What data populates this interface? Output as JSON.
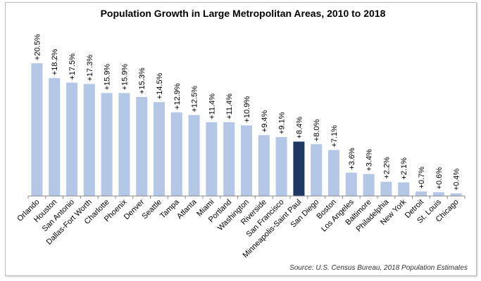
{
  "chart_data": {
    "type": "bar",
    "title": "Population Growth in Large Metropolitan Areas, 2010 to 2018",
    "source": "Source: U.S. Census Bureau, 2018 Population Estimates",
    "categories": [
      "Orlando",
      "Houston",
      "San Antonio",
      "Dallas-Fort Worth",
      "Charlotte",
      "Phoenix",
      "Denver",
      "Seattle",
      "Tampa",
      "Atlanta",
      "Miami",
      "Portland",
      "Washington",
      "Riverside",
      "San Francisco",
      "Minneapolis-Saint Paul",
      "San Diego",
      "Boston",
      "Los Angeles",
      "Baltimore",
      "Philadelphia",
      "New York",
      "Detroit",
      "St. Louis",
      "Chicago"
    ],
    "values": [
      20.5,
      18.2,
      17.5,
      17.3,
      15.9,
      15.9,
      15.3,
      14.5,
      12.9,
      12.5,
      11.4,
      11.4,
      10.9,
      9.4,
      9.1,
      8.4,
      8.0,
      7.1,
      3.6,
      3.4,
      2.2,
      2.1,
      0.7,
      0.6,
      0.4
    ],
    "data_labels": [
      "+20.5%",
      "+18.2%",
      "+17.5%",
      "+17.3%",
      "+15.9%",
      "+15.9%",
      "+15.3%",
      "+14.5%",
      "+12.9%",
      "+12.5%",
      "+11.4%",
      "+11.4%",
      "+10.9%",
      "+9.4%",
      "+9.1%",
      "+8.4%",
      "+8.0%",
      "+7.1%",
      "+3.6%",
      "+3.4%",
      "+2.2%",
      "+2.1%",
      "+0.7%",
      "+0.6%",
      "+0.4%"
    ],
    "highlight": "Minneapolis-Saint Paul",
    "colors": {
      "bar": "#b4c7e7",
      "highlight": "#1f3864",
      "axis": "#888888"
    },
    "ylim": [
      0,
      20.5
    ],
    "grid": false,
    "legend": "none"
  }
}
